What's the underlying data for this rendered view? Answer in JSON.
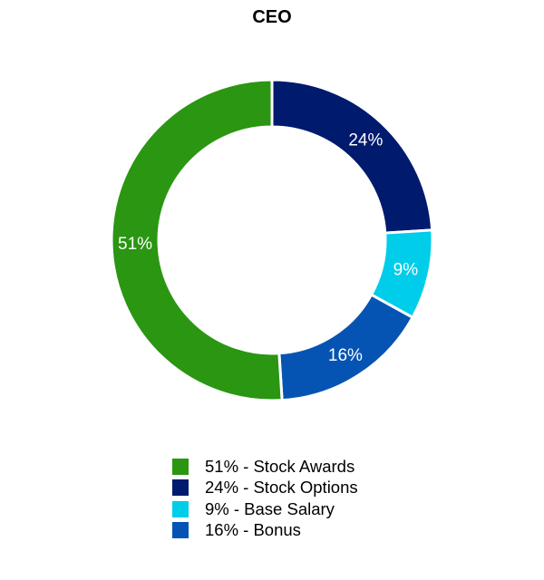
{
  "chart_data": {
    "type": "pie",
    "variant": "donut",
    "title": "CEO",
    "slices": [
      {
        "name": "Stock Options",
        "value": 24,
        "label": "24%",
        "legend": "24% - Stock Options",
        "color": "#001a6e"
      },
      {
        "name": "Base Salary",
        "value": 9,
        "label": "9%",
        "legend": "9% - Base Salary",
        "color": "#00cdea"
      },
      {
        "name": "Bonus",
        "value": 16,
        "label": "16%",
        "legend": "16% - Bonus",
        "color": "#0554b3"
      },
      {
        "name": "Stock Awards",
        "value": 51,
        "label": "51%",
        "legend": "51% - Stock Awards",
        "color": "#2a9612"
      }
    ],
    "legend_order": [
      3,
      0,
      1,
      2
    ],
    "legend_position": "bottom"
  }
}
